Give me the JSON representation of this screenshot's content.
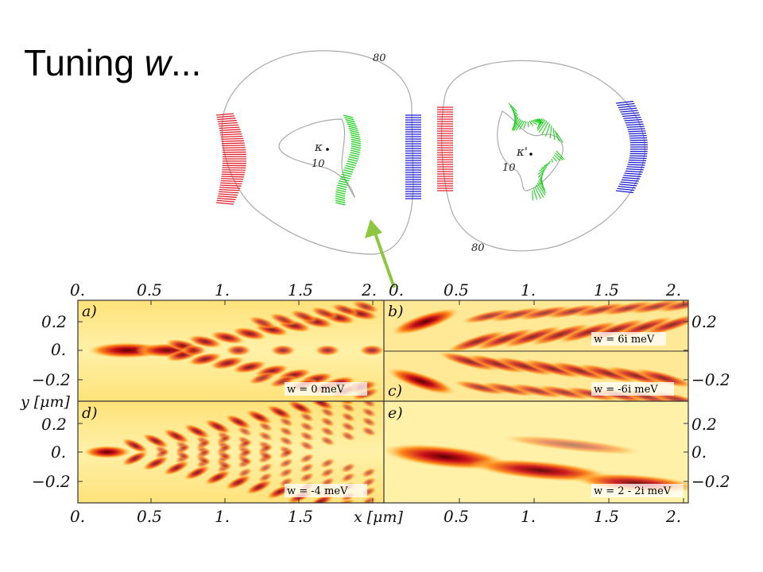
{
  "slide": {
    "title_text": "Tuning ",
    "title_var": "w",
    "title_suffix": "..."
  },
  "valley_diagram": {
    "left_valley_label": "κ",
    "right_valley_label": "κ'",
    "contour_labels": [
      "80",
      "10",
      "10",
      "80"
    ],
    "colors": {
      "red": "#e0202a",
      "green": "#20d020",
      "blue": "#1a1ad0",
      "contour": "#aaaaaa",
      "arrow": "#8dc63f"
    }
  },
  "panels": {
    "top_ticks_left": [
      "0.",
      "0.5",
      "1.",
      "1.5",
      "2."
    ],
    "top_ticks_right": [
      "0.",
      "0.5",
      "1.",
      "1.5",
      "2."
    ],
    "bottom_ticks_left": [
      "0.",
      "0.5",
      "1.",
      "1.5"
    ],
    "bottom_ticks_right": [
      "0.5",
      "1.",
      "1.5",
      "2."
    ],
    "left_yticks_top": [
      "0.2",
      "0.",
      "−0.2"
    ],
    "left_yticks_bottom": [
      "0.2",
      "0.",
      "−0.2"
    ],
    "right_yticks_top": [
      "0.2",
      "−0.2"
    ],
    "right_yticks_bottom": [
      "0.2",
      "0.",
      "−0.2"
    ],
    "ylabel": "y [μm]",
    "xlabel": "x [μm]",
    "labels": {
      "a": "a)",
      "b": "b)",
      "c": "c)",
      "d": "d)",
      "e": "e)"
    },
    "w_a": "w = 0 meV",
    "w_b": "w = 6i meV",
    "w_c": "w = -6i meV",
    "w_d": "w = -4 meV",
    "w_e": "w = 2 - 2i meV"
  }
}
